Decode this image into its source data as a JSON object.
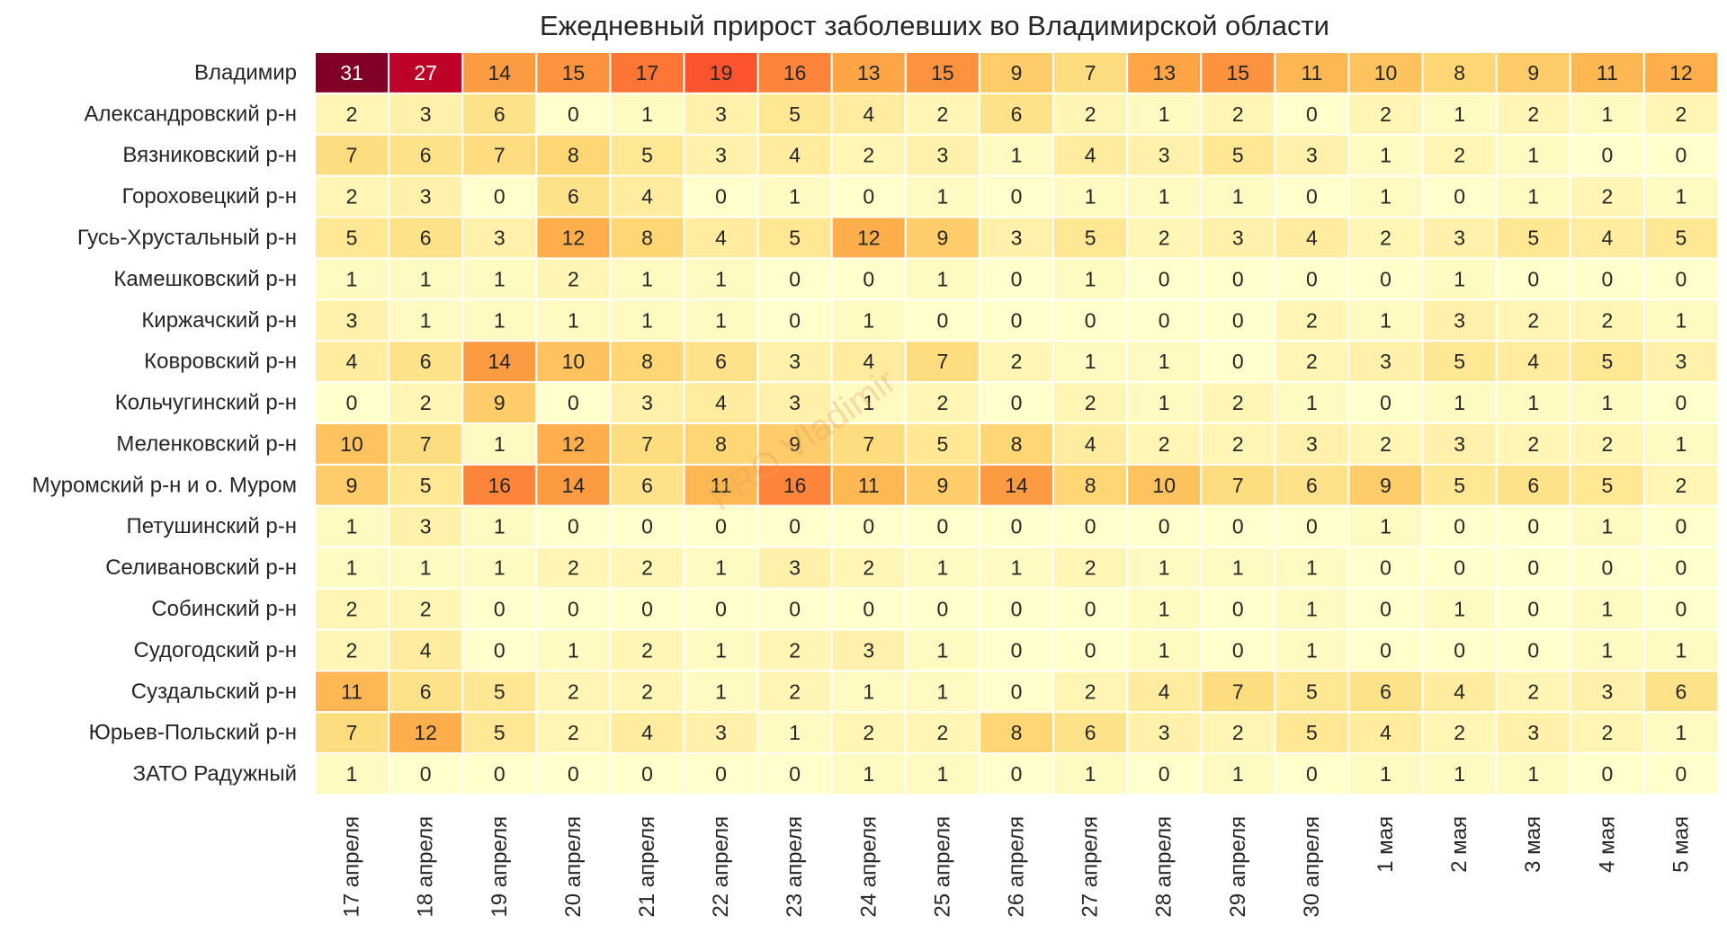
{
  "chart_data": {
    "type": "heatmap",
    "title": "Ежедневный прирост заболевших во Владимирской области",
    "watermark": "PRO Vladimir",
    "rows": [
      "Владимир",
      "Александровский р-н",
      "Вязниковский р-н",
      "Гороховецкий р-н",
      "Гусь-Хрустальный р-н",
      "Камешковский р-н",
      "Киржачский р-н",
      "Ковровский р-н",
      "Кольчугинский р-н",
      "Меленковский р-н",
      "Муромский р-н и о. Муром",
      "Петушинский р-н",
      "Селивановский р-н",
      "Собинский р-н",
      "Судогодский р-н",
      "Суздальский р-н",
      "Юрьев-Польский р-н",
      "ЗАТО Радужный"
    ],
    "columns": [
      "17 апреля",
      "18 апреля",
      "19 апреля",
      "20 апреля",
      "21 апреля",
      "22 апреля",
      "23 апреля",
      "24 апреля",
      "25 апреля",
      "26 апреля",
      "27 апреля",
      "28 апреля",
      "29 апреля",
      "30 апреля",
      "1 мая",
      "2 мая",
      "3 мая",
      "4 мая",
      "5 мая"
    ],
    "values": [
      [
        31,
        27,
        14,
        15,
        17,
        19,
        16,
        13,
        15,
        9,
        7,
        13,
        15,
        11,
        10,
        8,
        9,
        11,
        12
      ],
      [
        2,
        3,
        6,
        0,
        1,
        3,
        5,
        4,
        2,
        6,
        2,
        1,
        2,
        0,
        2,
        1,
        2,
        1,
        2
      ],
      [
        7,
        6,
        7,
        8,
        5,
        3,
        4,
        2,
        3,
        1,
        4,
        3,
        5,
        3,
        1,
        2,
        1,
        0,
        0
      ],
      [
        2,
        3,
        0,
        6,
        4,
        0,
        1,
        0,
        1,
        0,
        1,
        1,
        1,
        0,
        1,
        0,
        1,
        2,
        1
      ],
      [
        5,
        6,
        3,
        12,
        8,
        4,
        5,
        12,
        9,
        3,
        5,
        2,
        3,
        4,
        2,
        3,
        5,
        4,
        5
      ],
      [
        1,
        1,
        1,
        2,
        1,
        1,
        0,
        0,
        1,
        0,
        1,
        0,
        0,
        0,
        0,
        1,
        0,
        0,
        0
      ],
      [
        3,
        1,
        1,
        1,
        1,
        1,
        0,
        1,
        0,
        0,
        0,
        0,
        0,
        2,
        1,
        3,
        2,
        2,
        1
      ],
      [
        4,
        6,
        14,
        10,
        8,
        6,
        3,
        4,
        7,
        2,
        1,
        1,
        0,
        2,
        3,
        5,
        4,
        5,
        3
      ],
      [
        0,
        2,
        9,
        0,
        3,
        4,
        3,
        1,
        2,
        0,
        2,
        1,
        2,
        1,
        0,
        1,
        1,
        1,
        0
      ],
      [
        10,
        7,
        1,
        12,
        7,
        8,
        9,
        7,
        5,
        8,
        4,
        2,
        2,
        3,
        2,
        3,
        2,
        2,
        1
      ],
      [
        9,
        5,
        16,
        14,
        6,
        11,
        16,
        11,
        9,
        14,
        8,
        10,
        7,
        6,
        9,
        5,
        6,
        5,
        2
      ],
      [
        1,
        3,
        1,
        0,
        0,
        0,
        0,
        0,
        0,
        0,
        0,
        0,
        0,
        0,
        1,
        0,
        0,
        1,
        0
      ],
      [
        1,
        1,
        1,
        2,
        2,
        1,
        3,
        2,
        1,
        1,
        2,
        1,
        1,
        1,
        0,
        0,
        0,
        0,
        0
      ],
      [
        2,
        2,
        0,
        0,
        0,
        0,
        0,
        0,
        0,
        0,
        0,
        1,
        0,
        1,
        0,
        1,
        0,
        1,
        0
      ],
      [
        2,
        4,
        0,
        1,
        2,
        1,
        2,
        3,
        1,
        0,
        0,
        1,
        0,
        1,
        0,
        0,
        0,
        1,
        1
      ],
      [
        11,
        6,
        5,
        2,
        2,
        1,
        2,
        1,
        1,
        0,
        2,
        4,
        7,
        5,
        6,
        4,
        2,
        3,
        6
      ],
      [
        7,
        12,
        5,
        2,
        4,
        3,
        1,
        2,
        2,
        8,
        6,
        3,
        2,
        5,
        4,
        2,
        3,
        2,
        1
      ],
      [
        1,
        0,
        0,
        0,
        0,
        0,
        0,
        1,
        1,
        0,
        1,
        0,
        1,
        0,
        1,
        1,
        1,
        0,
        0
      ]
    ],
    "vmin": 0,
    "vmax": 31,
    "colormap": [
      "#ffffcc",
      "#ffeda0",
      "#fed976",
      "#feb24c",
      "#fd8d3c",
      "#fc4e2a",
      "#e31a1c",
      "#bd0026",
      "#800026"
    ],
    "colors": {
      "grid_line": "#ffffff",
      "text_dark": "#262626",
      "text_light": "#ffffff"
    }
  }
}
